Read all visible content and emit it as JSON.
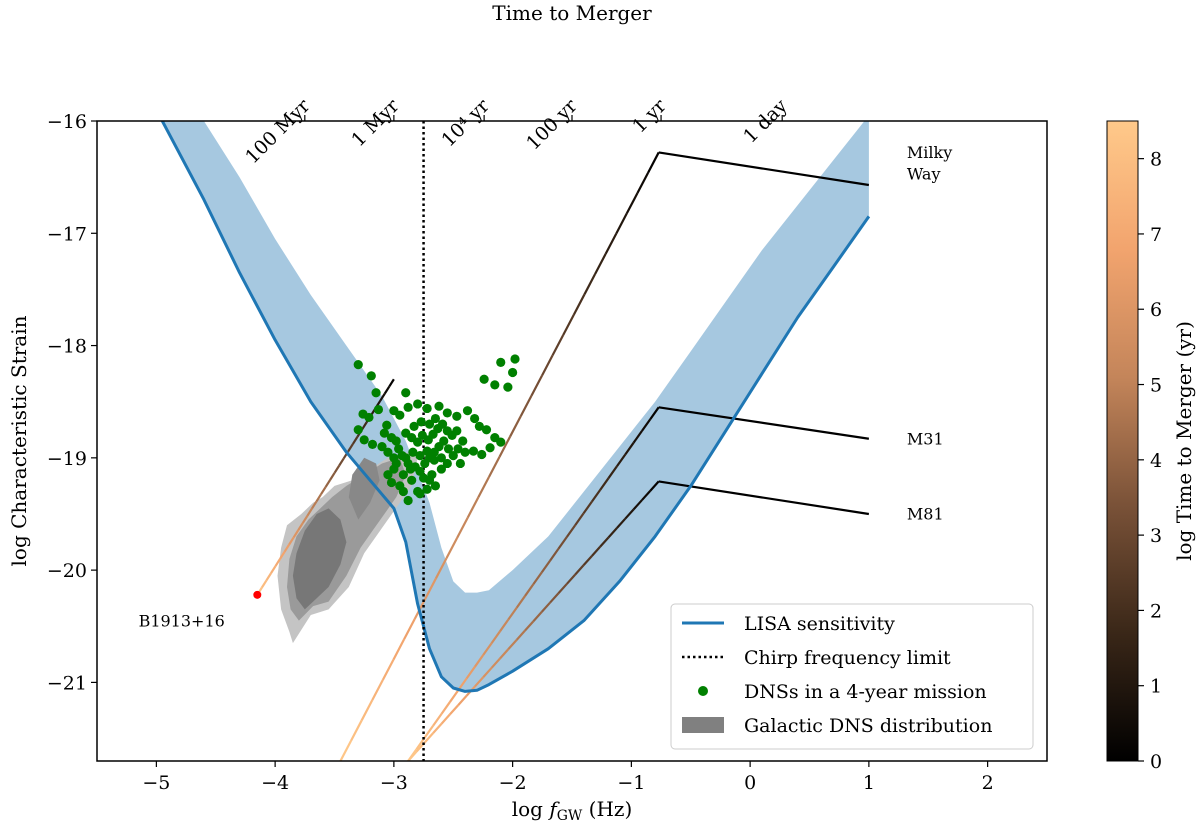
{
  "chart_data": {
    "type": "line",
    "title": "",
    "xlabel": "log f_GW (Hz)",
    "xlabel_parts": {
      "prefix": "log ",
      "var": "f",
      "sub": "GW",
      "suffix": " (Hz)"
    },
    "ylabel": "log Characteristic Strain",
    "xlim": [
      -5.5,
      2.5
    ],
    "ylim": [
      -21.7,
      -16
    ],
    "x_ticks": [
      -5,
      -4,
      -3,
      -2,
      -1,
      0,
      1,
      2
    ],
    "x_tick_labels": [
      "−5",
      "−4",
      "−3",
      "−2",
      "−1",
      "0",
      "1",
      "2"
    ],
    "y_ticks": [
      -16,
      -17,
      -18,
      -19,
      -20,
      -21
    ],
    "y_tick_labels": [
      "−16",
      "−17",
      "−18",
      "−19",
      "−20",
      "−21"
    ],
    "top_axis": {
      "label": "Time to Merger",
      "ticks": [
        {
          "x": -3.75,
          "label": "100 Myr"
        },
        {
          "x": -3.0,
          "label": "1 Myr"
        },
        {
          "x": -2.24,
          "label": "10⁴ yr"
        },
        {
          "x": -1.5,
          "label": "100 yr"
        },
        {
          "x": -0.75,
          "label": "1 yr"
        },
        {
          "x": 0.27,
          "label": "1 day"
        }
      ]
    },
    "colorbar": {
      "label": "log Time to Merger (yr)",
      "range": [
        0,
        8.5
      ],
      "ticks": [
        0,
        1,
        2,
        3,
        4,
        5,
        6,
        7,
        8
      ],
      "tick_labels": [
        "0",
        "1",
        "2",
        "3",
        "4",
        "5",
        "6",
        "7",
        "8"
      ],
      "stops": [
        "#000000",
        "#3a2718",
        "#7a5238",
        "#c4855a",
        "#f2a46e",
        "#ffc98a"
      ]
    },
    "lisa_sensitivity": {
      "name": "LISA sensitivity",
      "color": "#1f77b4",
      "x": [
        -4.95,
        -4.6,
        -4.3,
        -4.0,
        -3.7,
        -3.4,
        -3.2,
        -3.0,
        -2.9,
        -2.8,
        -2.7,
        -2.6,
        -2.5,
        -2.4,
        -2.3,
        -2.2,
        -2.0,
        -1.7,
        -1.4,
        -1.1,
        -0.8,
        -0.5,
        -0.2,
        0.1,
        0.4,
        0.7,
        1.0
      ],
      "y": [
        -16.0,
        -16.7,
        -17.35,
        -17.95,
        -18.5,
        -18.95,
        -19.2,
        -19.45,
        -19.75,
        -20.3,
        -20.7,
        -20.95,
        -21.05,
        -21.08,
        -21.07,
        -21.02,
        -20.9,
        -20.7,
        -20.45,
        -20.1,
        -19.7,
        -19.25,
        -18.75,
        -18.25,
        -17.75,
        -17.3,
        -16.85
      ]
    },
    "lisa_band_upper": {
      "x": [
        -4.6,
        -4.3,
        -4.0,
        -3.7,
        -3.4,
        -3.1,
        -2.9,
        -2.7,
        -2.6,
        -2.5,
        -2.4,
        -2.3,
        -2.2,
        -2.0,
        -1.7,
        -1.4,
        -1.1,
        -0.8,
        -0.5,
        -0.2,
        0.1,
        0.4,
        0.7,
        1.0
      ],
      "y": [
        -16.0,
        -16.5,
        -17.05,
        -17.55,
        -18.0,
        -18.45,
        -18.85,
        -19.4,
        -19.8,
        -20.1,
        -20.2,
        -20.2,
        -20.18,
        -20.0,
        -19.7,
        -19.3,
        -18.9,
        -18.5,
        -18.05,
        -17.6,
        -17.15,
        -16.75,
        -16.35,
        -15.95
      ]
    },
    "chirp_frequency_limit": {
      "name": "Chirp frequency limit",
      "x": -2.75
    },
    "tracks": [
      {
        "label": "Milky Way",
        "x": [
          -3.45,
          -0.77,
          1.0
        ],
        "y": [
          -21.7,
          -16.28,
          -16.57
        ]
      },
      {
        "label": "M31",
        "x": [
          -2.88,
          -0.77,
          1.0
        ],
        "y": [
          -21.7,
          -18.55,
          -18.83
        ]
      },
      {
        "label": "M81",
        "x": [
          -2.88,
          -0.77,
          1.0
        ],
        "y": [
          -21.7,
          -19.21,
          -19.5
        ]
      },
      {
        "label": "B1913+16",
        "x": [
          -4.15,
          -3.0
        ],
        "y": [
          -20.22,
          -18.3
        ]
      }
    ],
    "b1913_point": {
      "label": "B1913+16",
      "x": -4.15,
      "y": -20.22,
      "color": "#ff0000"
    },
    "dns_points": {
      "name": "DNSs in a 4-year mission",
      "color": "#008000",
      "points": [
        [
          -3.3,
          -18.17
        ],
        [
          -3.19,
          -18.27
        ],
        [
          -3.15,
          -18.42
        ],
        [
          -2.1,
          -18.15
        ],
        [
          -1.98,
          -18.12
        ],
        [
          -2.0,
          -18.24
        ],
        [
          -2.15,
          -18.35
        ],
        [
          -2.04,
          -18.37
        ],
        [
          -2.24,
          -18.3
        ],
        [
          -2.9,
          -18.42
        ],
        [
          -3.26,
          -18.61
        ],
        [
          -3.21,
          -18.64
        ],
        [
          -3.13,
          -18.57
        ],
        [
          -3.06,
          -18.71
        ],
        [
          -3.0,
          -18.58
        ],
        [
          -2.95,
          -18.62
        ],
        [
          -2.88,
          -18.55
        ],
        [
          -2.8,
          -18.52
        ],
        [
          -2.72,
          -18.56
        ],
        [
          -2.62,
          -18.54
        ],
        [
          -2.55,
          -18.6
        ],
        [
          -2.47,
          -18.63
        ],
        [
          -2.38,
          -18.58
        ],
        [
          -2.32,
          -18.65
        ],
        [
          -2.28,
          -18.72
        ],
        [
          -2.22,
          -18.75
        ],
        [
          -2.15,
          -18.82
        ],
        [
          -2.1,
          -18.86
        ],
        [
          -2.19,
          -18.91
        ],
        [
          -2.26,
          -18.97
        ],
        [
          -2.33,
          -18.94
        ],
        [
          -3.3,
          -18.75
        ],
        [
          -3.25,
          -18.84
        ],
        [
          -3.18,
          -18.88
        ],
        [
          -3.1,
          -18.9
        ],
        [
          -3.05,
          -18.95
        ],
        [
          -3.0,
          -19.0
        ],
        [
          -2.98,
          -19.05
        ],
        [
          -2.93,
          -18.98
        ],
        [
          -2.88,
          -19.05
        ],
        [
          -2.82,
          -19.08
        ],
        [
          -2.78,
          -19.12
        ],
        [
          -2.74,
          -19.05
        ],
        [
          -2.7,
          -19.0
        ],
        [
          -2.66,
          -18.95
        ],
        [
          -2.62,
          -18.9
        ],
        [
          -2.58,
          -18.85
        ],
        [
          -2.54,
          -18.92
        ],
        [
          -2.5,
          -18.98
        ],
        [
          -2.46,
          -18.92
        ],
        [
          -2.42,
          -18.85
        ],
        [
          -2.4,
          -18.95
        ],
        [
          -2.44,
          -19.05
        ],
        [
          -2.55,
          -19.05
        ],
        [
          -2.6,
          -19.1
        ],
        [
          -2.68,
          -19.15
        ],
        [
          -2.75,
          -19.18
        ],
        [
          -2.85,
          -19.2
        ],
        [
          -2.92,
          -19.15
        ],
        [
          -3.0,
          -19.1
        ],
        [
          -3.05,
          -19.15
        ],
        [
          -2.95,
          -19.25
        ],
        [
          -2.8,
          -19.3
        ],
        [
          -2.72,
          -19.28
        ],
        [
          -2.65,
          -19.25
        ],
        [
          -2.9,
          -18.78
        ],
        [
          -2.85,
          -18.82
        ],
        [
          -2.8,
          -18.86
        ],
        [
          -2.76,
          -18.8
        ],
        [
          -2.71,
          -18.84
        ],
        [
          -2.67,
          -18.79
        ],
        [
          -2.63,
          -18.74
        ],
        [
          -2.59,
          -18.7
        ],
        [
          -2.55,
          -18.76
        ],
        [
          -2.51,
          -18.8
        ],
        [
          -2.47,
          -18.76
        ],
        [
          -2.98,
          -18.85
        ],
        [
          -3.02,
          -18.82
        ],
        [
          -3.08,
          -18.78
        ],
        [
          -2.84,
          -18.95
        ],
        [
          -2.78,
          -18.98
        ],
        [
          -2.72,
          -18.94
        ],
        [
          -2.66,
          -19.02
        ],
        [
          -2.6,
          -19.0
        ],
        [
          -2.9,
          -19.0
        ],
        [
          -2.96,
          -18.92
        ],
        [
          -2.7,
          -18.7
        ],
        [
          -2.77,
          -18.68
        ],
        [
          -2.83,
          -18.72
        ],
        [
          -2.65,
          -18.65
        ],
        [
          -2.88,
          -19.38
        ],
        [
          -2.78,
          -19.32
        ],
        [
          -2.7,
          -19.2
        ],
        [
          -2.92,
          -19.3
        ],
        [
          -3.02,
          -19.22
        ],
        [
          -2.86,
          -19.1
        ]
      ]
    },
    "galactic_dns_distribution": {
      "name": "Galactic DNS distribution",
      "levels": [
        {
          "color": "#c4c4c4",
          "x": [
            -3.85,
            -3.7,
            -3.55,
            -3.38,
            -3.25,
            -3.15,
            -3.05,
            -2.95,
            -2.85,
            -2.8,
            -2.9,
            -3.05,
            -3.2,
            -3.35,
            -3.5,
            -3.6,
            -3.68,
            -3.78,
            -3.9,
            -3.95,
            -3.98,
            -3.95,
            -3.88
          ],
          "y": [
            -20.65,
            -20.4,
            -20.35,
            -20.15,
            -19.85,
            -19.7,
            -19.55,
            -19.4,
            -19.25,
            -19.0,
            -18.95,
            -19.0,
            -19.1,
            -19.2,
            -19.25,
            -19.35,
            -19.4,
            -19.5,
            -19.6,
            -19.8,
            -20.05,
            -20.35,
            -20.55
          ]
        },
        {
          "color": "#9a9a9a",
          "x": [
            -3.8,
            -3.68,
            -3.55,
            -3.4,
            -3.28,
            -3.18,
            -3.08,
            -2.98,
            -2.9,
            -2.95,
            -3.1,
            -3.25,
            -3.4,
            -3.52,
            -3.62,
            -3.72,
            -3.82,
            -3.88,
            -3.9,
            -3.87
          ],
          "y": [
            -20.45,
            -20.32,
            -20.28,
            -20.05,
            -19.8,
            -19.65,
            -19.5,
            -19.35,
            -19.15,
            -19.0,
            -19.05,
            -19.15,
            -19.25,
            -19.35,
            -19.45,
            -19.55,
            -19.7,
            -19.9,
            -20.15,
            -20.35
          ]
        },
        {
          "color": "#777777",
          "x": [
            -3.75,
            -3.65,
            -3.55,
            -3.45,
            -3.4,
            -3.45,
            -3.55,
            -3.65,
            -3.75,
            -3.82,
            -3.85,
            -3.82
          ],
          "y": [
            -20.35,
            -20.25,
            -20.15,
            -19.95,
            -19.75,
            -19.55,
            -19.45,
            -19.5,
            -19.65,
            -19.85,
            -20.05,
            -20.25
          ]
        },
        {
          "color": "#888888",
          "x": [
            -3.3,
            -3.2,
            -3.12,
            -3.15,
            -3.25,
            -3.35,
            -3.38
          ],
          "y": [
            -19.55,
            -19.4,
            -19.2,
            -19.05,
            -19.0,
            -19.15,
            -19.35
          ]
        }
      ]
    },
    "annotations": [
      {
        "text": "Milky",
        "x": 1.32,
        "y": -16.33
      },
      {
        "text": "Way",
        "x": 1.32,
        "y": -16.52
      },
      {
        "text": "M31",
        "x": 1.32,
        "y": -18.88
      },
      {
        "text": "M81",
        "x": 1.32,
        "y": -19.55
      },
      {
        "text": "B1913+16",
        "x": -5.15,
        "y": -20.5
      }
    ],
    "legend": {
      "placement": "lower right",
      "entries": [
        {
          "label": "LISA sensitivity",
          "kind": "line",
          "color": "#1f77b4"
        },
        {
          "label": "Chirp frequency limit",
          "kind": "dotted",
          "color": "#000000"
        },
        {
          "label": "DNSs in a 4-year mission",
          "kind": "marker",
          "color": "#008000"
        },
        {
          "label": "Galactic DNS distribution",
          "kind": "patch",
          "color": "#808080"
        }
      ]
    },
    "band_color": "#a6c8e0"
  }
}
